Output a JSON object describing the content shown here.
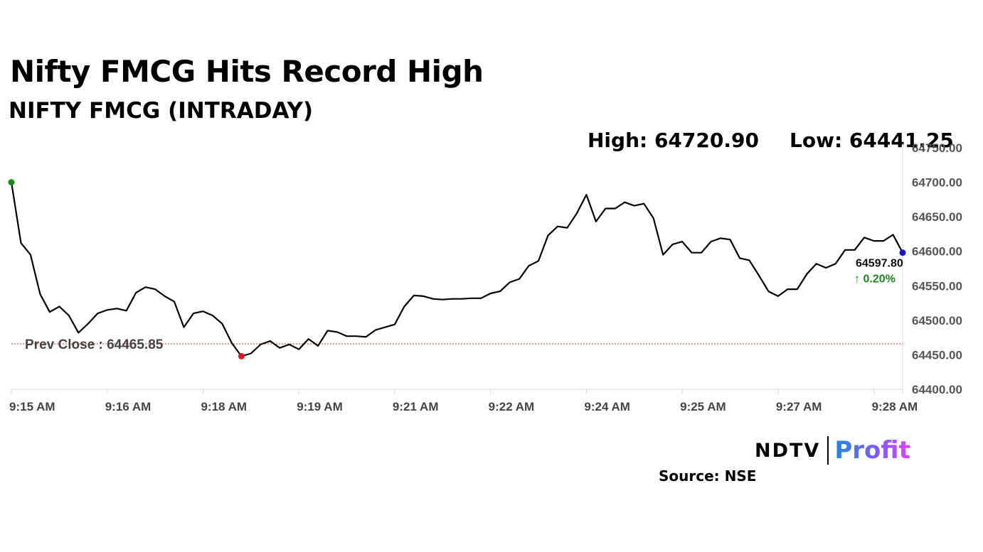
{
  "header": {
    "title": "Nifty FMCG Hits Record High",
    "subtitle": "NIFTY FMCG (INTRADAY)"
  },
  "stats": {
    "high": "High: 64720.90",
    "low": "Low: 64441.25"
  },
  "colors": {
    "line": "#000000",
    "open_marker": "#1a8a1a",
    "low_marker": "#e8141e",
    "last_marker": "#1a1acc",
    "prev_close_line": "#e03030",
    "change_text": "#1a8a1a",
    "grid_axis": "#d8d8d8"
  },
  "chart_data": {
    "type": "line",
    "ylim": [
      64400,
      64750
    ],
    "y_ticks": [
      "64400.00",
      "64450.00",
      "64500.00",
      "64550.00",
      "64600.00",
      "64650.00",
      "64700.00",
      "64750.00"
    ],
    "x_ticks": [
      "9:15 AM",
      "9:16 AM",
      "9:18 AM",
      "9:19 AM",
      "9:21 AM",
      "9:22 AM",
      "9:24 AM",
      "9:25 AM",
      "9:27 AM",
      "9:28 AM"
    ],
    "x_tick_index": [
      0,
      10,
      20,
      30,
      40,
      50,
      60,
      70,
      80,
      90
    ],
    "prev_close": 64465.85,
    "prev_close_label": "Prev Close : 64465.85",
    "last_value_label": "64597.80",
    "change_label": "↑ 0.20%",
    "series": [
      {
        "values": [
          64700,
          64612,
          64595,
          64538,
          64512,
          64520,
          64507,
          64482,
          64495,
          64510,
          64515,
          64517,
          64514,
          64540,
          64548,
          64545,
          64535,
          64527,
          64490,
          64510,
          64513,
          64507,
          64495,
          64467,
          64448,
          64452,
          64465,
          64470,
          64460,
          64465,
          64458,
          64473,
          64463,
          64485,
          64483,
          64477,
          64477,
          64476,
          64486,
          64490,
          64494,
          64520,
          64536,
          64535,
          64531,
          64530,
          64531,
          64531,
          64532,
          64532,
          64539,
          64542,
          64555,
          64560,
          64579,
          64586,
          64623,
          64636,
          64634,
          64655,
          64682,
          64643,
          64662,
          64662,
          64671,
          64666,
          64669,
          64648,
          64595,
          64610,
          64614,
          64598,
          64598,
          64614,
          64619,
          64617,
          64590,
          64587,
          64565,
          64542,
          64535,
          64545,
          64545,
          64567,
          64582,
          64576,
          64582,
          64602,
          64602,
          64620,
          64615,
          64615,
          64624,
          64598
        ]
      }
    ],
    "open_index": 0,
    "low_index": 24,
    "last_index": 93
  },
  "footer": {
    "logo_ndtv": "NDTV",
    "logo_profit": "Profit",
    "source": "Source: NSE"
  }
}
